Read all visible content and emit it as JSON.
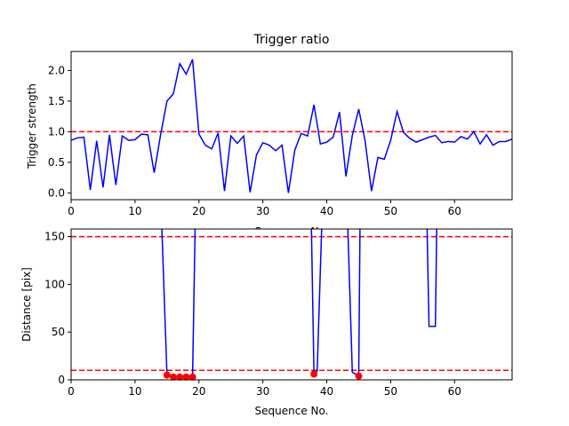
{
  "chart_data": [
    {
      "type": "line",
      "title": "Trigger ratio",
      "xlabel": "Sequence No.",
      "ylabel": "Trigger strength",
      "xlim": [
        0,
        69
      ],
      "ylim": [
        -0.11,
        2.31
      ],
      "xticks": [
        "0",
        "10",
        "20",
        "30",
        "40",
        "50",
        "60"
      ],
      "yticks": [
        "0.0",
        "0.5",
        "1.0",
        "1.5",
        "2.0"
      ],
      "grid": false,
      "series": [
        {
          "color": "#0000ff",
          "x": [
            0,
            1,
            2,
            3,
            4,
            5,
            6,
            7,
            8,
            9,
            10,
            11,
            12,
            13,
            14,
            15,
            16,
            17,
            18,
            19,
            20,
            21,
            22,
            23,
            24,
            25,
            26,
            27,
            28,
            29,
            30,
            31,
            32,
            33,
            34,
            35,
            36,
            37,
            38,
            39,
            40,
            41,
            42,
            43,
            44,
            45,
            46,
            47,
            48,
            49,
            50,
            51,
            52,
            53,
            54,
            55,
            56,
            57,
            58,
            59,
            60,
            61,
            62,
            63,
            64,
            65,
            66,
            67,
            68,
            69
          ],
          "values": [
            0.86,
            0.9,
            0.91,
            0.05,
            0.85,
            0.09,
            0.95,
            0.13,
            0.93,
            0.86,
            0.87,
            0.96,
            0.95,
            0.33,
            0.95,
            1.5,
            1.62,
            2.11,
            1.94,
            2.18,
            0.96,
            0.78,
            0.72,
            0.98,
            0.03,
            0.93,
            0.81,
            0.93,
            0.01,
            0.62,
            0.82,
            0.78,
            0.69,
            0.78,
            0.0,
            0.7,
            0.97,
            0.93,
            1.44,
            0.8,
            0.83,
            0.91,
            1.32,
            0.27,
            0.94,
            1.37,
            0.85,
            0.03,
            0.58,
            0.55,
            0.86,
            1.33,
            0.99,
            0.89,
            0.83,
            0.87,
            0.91,
            0.94,
            0.82,
            0.84,
            0.83,
            0.92,
            0.88,
            1.0,
            0.8,
            0.95,
            0.78,
            0.84,
            0.84,
            0.88
          ]
        }
      ],
      "hlines": [
        {
          "y": 1.0,
          "color": "#ff0000",
          "style": "dashed"
        }
      ]
    },
    {
      "type": "line",
      "title": "",
      "xlabel": "Sequence No.",
      "ylabel": "Distance [pix]",
      "xlim": [
        0,
        69
      ],
      "ylim": [
        0,
        158
      ],
      "xticks": [
        "0",
        "10",
        "20",
        "30",
        "40",
        "50",
        "60"
      ],
      "yticks": [
        "0",
        "50",
        "100",
        "150"
      ],
      "grid": false,
      "series": [
        {
          "color": "#0000ff",
          "segments": [
            {
              "x": [
                14.2,
                15,
                16,
                17,
                18,
                19,
                19.4
              ],
              "values": [
                158,
                5,
                3,
                3,
                3,
                3,
                158
              ]
            },
            {
              "x": [
                37.6,
                38,
                38.5,
                39.2
              ],
              "values": [
                158,
                6,
                9,
                158
              ]
            },
            {
              "x": [
                43.3,
                44,
                45,
                45.2
              ],
              "values": [
                158,
                8,
                4,
                158
              ]
            },
            {
              "x": [
                55.7,
                56,
                57,
                57.2
              ],
              "values": [
                158,
                56,
                56,
                158
              ]
            }
          ]
        },
        {
          "color": "#ff0000",
          "marker": "circle",
          "x": [
            15,
            16,
            17,
            18,
            19,
            38,
            45
          ],
          "values": [
            5,
            3,
            3,
            3,
            3,
            6,
            4
          ]
        }
      ],
      "hlines": [
        {
          "y": 150,
          "color": "#ff0000",
          "style": "dashed"
        },
        {
          "y": 10,
          "color": "#ff0000",
          "style": "dashed"
        }
      ]
    }
  ]
}
